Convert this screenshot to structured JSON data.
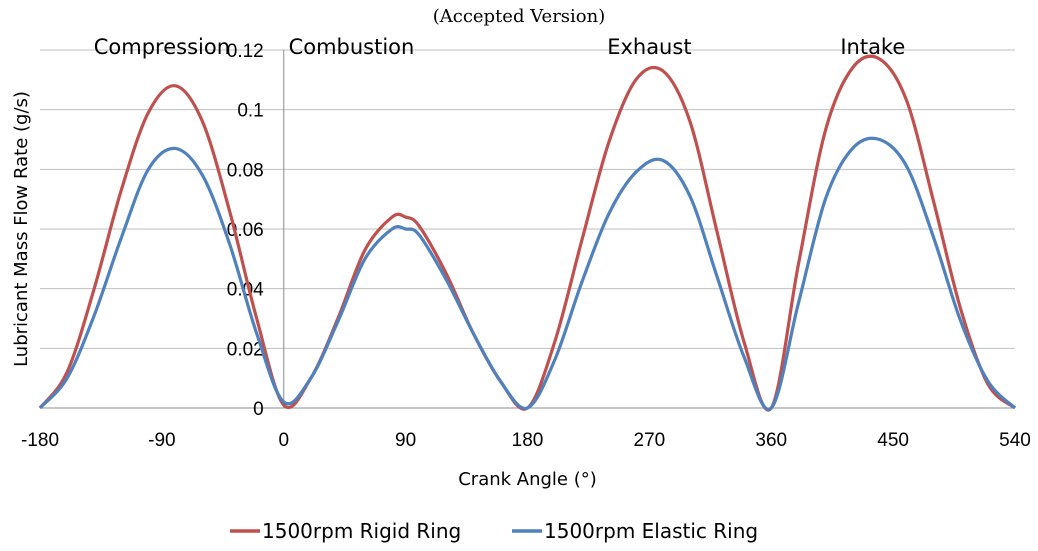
{
  "header": {
    "note": "(Accepted Version)"
  },
  "colors": {
    "rigid": "#c0504d",
    "elastic": "#4f81bd",
    "grid": "#bfbfbf",
    "axis": "#8c8c8c"
  },
  "chart_data": {
    "type": "line",
    "title": "",
    "xlabel": "Crank Angle (°)",
    "ylabel": "Lubricant Mass Flow Rate (g/s)",
    "xlim": [
      -180,
      540
    ],
    "ylim": [
      0,
      0.12
    ],
    "xticks": [
      -180,
      -90,
      0,
      90,
      180,
      270,
      360,
      450,
      540
    ],
    "xtick_labels": [
      "-180",
      "-90",
      "0",
      "90",
      "180",
      "270",
      "360",
      "450",
      "540"
    ],
    "yticks": [
      0,
      0.02,
      0.04,
      0.06,
      0.08,
      0.1,
      0.12
    ],
    "ytick_labels": [
      "0",
      "0.02",
      "0.04",
      "0.06",
      "0.08",
      "0.1",
      "0.12"
    ],
    "grid": true,
    "legend_position": "bottom",
    "annotations": [
      {
        "text": "Compression",
        "x": -90
      },
      {
        "text": "Combustion",
        "x": 50
      },
      {
        "text": "Exhaust",
        "x": 270
      },
      {
        "text": "Intake",
        "x": 435
      }
    ],
    "series": [
      {
        "name": "1500rpm Rigid Ring",
        "x": [
          -180,
          -160,
          -140,
          -120,
          -100,
          -80,
          -60,
          -40,
          -20,
          0,
          20,
          40,
          60,
          80,
          90,
          100,
          120,
          140,
          160,
          180,
          200,
          220,
          240,
          260,
          280,
          300,
          320,
          340,
          360,
          380,
          400,
          420,
          440,
          460,
          480,
          500,
          520,
          540
        ],
        "y": [
          0,
          0.012,
          0.04,
          0.073,
          0.099,
          0.108,
          0.096,
          0.066,
          0.03,
          0.001,
          0.01,
          0.03,
          0.053,
          0.064,
          0.064,
          0.061,
          0.045,
          0.025,
          0.009,
          0,
          0.022,
          0.056,
          0.089,
          0.11,
          0.113,
          0.096,
          0.059,
          0.022,
          0,
          0.048,
          0.093,
          0.114,
          0.117,
          0.103,
          0.069,
          0.033,
          0.008,
          0
        ]
      },
      {
        "name": "1500rpm Elastic Ring",
        "x": [
          -180,
          -160,
          -140,
          -120,
          -100,
          -80,
          -60,
          -40,
          -20,
          0,
          20,
          40,
          60,
          80,
          90,
          100,
          120,
          140,
          160,
          180,
          200,
          220,
          240,
          260,
          280,
          300,
          320,
          340,
          360,
          380,
          400,
          420,
          440,
          460,
          480,
          500,
          520,
          540
        ],
        "y": [
          0,
          0.01,
          0.031,
          0.057,
          0.08,
          0.087,
          0.078,
          0.055,
          0.025,
          0.002,
          0.01,
          0.029,
          0.05,
          0.06,
          0.06,
          0.058,
          0.043,
          0.025,
          0.009,
          0,
          0.016,
          0.042,
          0.065,
          0.079,
          0.083,
          0.071,
          0.044,
          0.017,
          0,
          0.035,
          0.07,
          0.087,
          0.09,
          0.081,
          0.057,
          0.029,
          0.009,
          0
        ]
      }
    ]
  }
}
